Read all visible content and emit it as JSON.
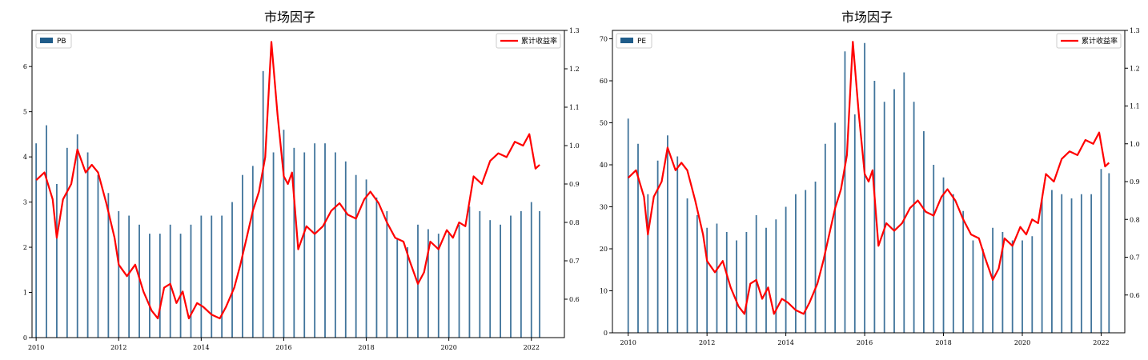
{
  "chart_data": [
    {
      "type": "bar+line",
      "title": "市场因子",
      "x_ticks": [
        "2010",
        "2012",
        "2014",
        "2016",
        "2018",
        "2020",
        "2022"
      ],
      "xlim": [
        2009.9,
        2022.8
      ],
      "ylim_left": [
        0,
        6.8
      ],
      "yticks_left": [
        "0",
        "1",
        "2",
        "3",
        "4",
        "5",
        "6"
      ],
      "ylim_right": [
        0.5,
        1.3
      ],
      "yticks_right": [
        "0.6",
        "0.7",
        "0.8",
        "0.9",
        "1.0",
        "1.1",
        "1.2",
        "1.3"
      ],
      "bar_series": {
        "name": "PB",
        "color": "#1f5c8a",
        "x": [
          2010.0,
          2010.25,
          2010.5,
          2010.75,
          2011.0,
          2011.25,
          2011.5,
          2011.75,
          2012.0,
          2012.25,
          2012.5,
          2012.75,
          2013.0,
          2013.25,
          2013.5,
          2013.75,
          2014.0,
          2014.25,
          2014.5,
          2014.75,
          2015.0,
          2015.25,
          2015.5,
          2015.75,
          2016.0,
          2016.25,
          2016.5,
          2016.75,
          2017.0,
          2017.25,
          2017.5,
          2017.75,
          2018.0,
          2018.25,
          2018.5,
          2018.75,
          2019.0,
          2019.25,
          2019.5,
          2019.75,
          2020.0,
          2020.25,
          2020.5,
          2020.75,
          2021.0,
          2021.25,
          2021.5,
          2021.75,
          2022.0,
          2022.2
        ],
        "values": [
          4.3,
          4.7,
          3.4,
          4.2,
          4.5,
          4.1,
          3.6,
          3.2,
          2.8,
          2.7,
          2.5,
          2.3,
          2.3,
          2.5,
          2.3,
          2.5,
          2.7,
          2.7,
          2.7,
          3.0,
          3.6,
          3.8,
          5.9,
          4.1,
          4.6,
          4.2,
          4.1,
          4.3,
          4.3,
          4.1,
          3.9,
          3.6,
          3.5,
          3.1,
          2.8,
          2.2,
          2.0,
          2.5,
          2.4,
          2.3,
          2.3,
          2.5,
          2.9,
          2.8,
          2.6,
          2.5,
          2.7,
          2.8,
          3.0,
          2.8
        ]
      },
      "line_series": {
        "name": "累计收益率",
        "color": "#ff0000",
        "x": [
          2010.0,
          2010.2,
          2010.4,
          2010.5,
          2010.65,
          2010.85,
          2011.0,
          2011.2,
          2011.35,
          2011.5,
          2011.7,
          2011.9,
          2012.0,
          2012.2,
          2012.4,
          2012.6,
          2012.8,
          2012.95,
          2013.1,
          2013.25,
          2013.4,
          2013.55,
          2013.7,
          2013.9,
          2014.05,
          2014.25,
          2014.45,
          2014.6,
          2014.8,
          2014.95,
          2015.1,
          2015.25,
          2015.4,
          2015.55,
          2015.7,
          2015.85,
          2016.0,
          2016.1,
          2016.2,
          2016.35,
          2016.55,
          2016.75,
          2016.95,
          2017.15,
          2017.35,
          2017.55,
          2017.75,
          2017.95,
          2018.1,
          2018.3,
          2018.5,
          2018.7,
          2018.9,
          2019.05,
          2019.25,
          2019.4,
          2019.55,
          2019.75,
          2019.95,
          2020.1,
          2020.25,
          2020.4,
          2020.6,
          2020.8,
          2021.0,
          2021.2,
          2021.4,
          2021.6,
          2021.8,
          2021.95,
          2022.1,
          2022.2
        ],
        "values": [
          0.91,
          0.93,
          0.86,
          0.76,
          0.86,
          0.9,
          0.99,
          0.93,
          0.95,
          0.93,
          0.85,
          0.76,
          0.69,
          0.66,
          0.69,
          0.62,
          0.57,
          0.55,
          0.63,
          0.64,
          0.59,
          0.62,
          0.55,
          0.59,
          0.58,
          0.56,
          0.55,
          0.58,
          0.63,
          0.69,
          0.76,
          0.83,
          0.88,
          0.97,
          1.27,
          1.08,
          0.92,
          0.9,
          0.93,
          0.73,
          0.79,
          0.77,
          0.79,
          0.83,
          0.85,
          0.82,
          0.81,
          0.86,
          0.88,
          0.85,
          0.8,
          0.76,
          0.75,
          0.7,
          0.64,
          0.67,
          0.75,
          0.73,
          0.78,
          0.76,
          0.8,
          0.79,
          0.92,
          0.9,
          0.96,
          0.98,
          0.97,
          1.01,
          1.0,
          1.03,
          0.94,
          0.95
        ]
      },
      "legend_left": "top-left",
      "legend_right": "top-right"
    },
    {
      "type": "bar+line",
      "title": "市场因子",
      "x_ticks": [
        "2010",
        "2012",
        "2014",
        "2016",
        "2018",
        "2020",
        "2022"
      ],
      "xlim": [
        2009.6,
        2022.6
      ],
      "ylim_left": [
        0,
        72
      ],
      "yticks_left": [
        "0",
        "10",
        "20",
        "30",
        "40",
        "50",
        "60",
        "70"
      ],
      "ylim_right": [
        0.5,
        1.3
      ],
      "yticks_right": [
        "0.6",
        "0.7",
        "0.8",
        "0.9",
        "1.0",
        "1.1",
        "1.2",
        "1.3"
      ],
      "bar_series": {
        "name": "PE",
        "color": "#1f5c8a",
        "x": [
          2010.0,
          2010.25,
          2010.5,
          2010.75,
          2011.0,
          2011.25,
          2011.5,
          2011.75,
          2012.0,
          2012.25,
          2012.5,
          2012.75,
          2013.0,
          2013.25,
          2013.5,
          2013.75,
          2014.0,
          2014.25,
          2014.5,
          2014.75,
          2015.0,
          2015.25,
          2015.5,
          2015.75,
          2016.0,
          2016.25,
          2016.5,
          2016.75,
          2017.0,
          2017.25,
          2017.5,
          2017.75,
          2018.0,
          2018.25,
          2018.5,
          2018.75,
          2019.0,
          2019.25,
          2019.5,
          2019.75,
          2020.0,
          2020.25,
          2020.5,
          2020.75,
          2021.0,
          2021.25,
          2021.5,
          2021.75,
          2022.0,
          2022.2
        ],
        "values": [
          51,
          45,
          33,
          41,
          47,
          42,
          32,
          28,
          25,
          26,
          24,
          22,
          24,
          28,
          25,
          27,
          30,
          33,
          34,
          36,
          45,
          50,
          67,
          52,
          69,
          60,
          55,
          58,
          62,
          55,
          48,
          40,
          37,
          33,
          29,
          22,
          20,
          25,
          24,
          22,
          22,
          23,
          32,
          34,
          33,
          32,
          33,
          33,
          39,
          38
        ]
      },
      "line_series": {
        "name": "累计收益率",
        "color": "#ff0000",
        "x": [
          2010.0,
          2010.2,
          2010.4,
          2010.5,
          2010.65,
          2010.85,
          2011.0,
          2011.2,
          2011.35,
          2011.5,
          2011.7,
          2011.9,
          2012.0,
          2012.2,
          2012.4,
          2012.6,
          2012.8,
          2012.95,
          2013.1,
          2013.25,
          2013.4,
          2013.55,
          2013.7,
          2013.9,
          2014.05,
          2014.25,
          2014.45,
          2014.6,
          2014.8,
          2014.95,
          2015.1,
          2015.25,
          2015.4,
          2015.55,
          2015.7,
          2015.85,
          2016.0,
          2016.1,
          2016.2,
          2016.35,
          2016.55,
          2016.75,
          2016.95,
          2017.15,
          2017.35,
          2017.55,
          2017.75,
          2017.95,
          2018.1,
          2018.3,
          2018.5,
          2018.7,
          2018.9,
          2019.05,
          2019.25,
          2019.4,
          2019.55,
          2019.75,
          2019.95,
          2020.1,
          2020.25,
          2020.4,
          2020.6,
          2020.8,
          2021.0,
          2021.2,
          2021.4,
          2021.6,
          2021.8,
          2021.95,
          2022.1,
          2022.2
        ],
        "values": [
          0.91,
          0.93,
          0.86,
          0.76,
          0.86,
          0.9,
          0.99,
          0.93,
          0.95,
          0.93,
          0.85,
          0.76,
          0.69,
          0.66,
          0.69,
          0.62,
          0.57,
          0.55,
          0.63,
          0.64,
          0.59,
          0.62,
          0.55,
          0.59,
          0.58,
          0.56,
          0.55,
          0.58,
          0.63,
          0.69,
          0.76,
          0.83,
          0.88,
          0.97,
          1.27,
          1.08,
          0.92,
          0.9,
          0.93,
          0.73,
          0.79,
          0.77,
          0.79,
          0.83,
          0.85,
          0.82,
          0.81,
          0.86,
          0.88,
          0.85,
          0.8,
          0.76,
          0.75,
          0.7,
          0.64,
          0.67,
          0.75,
          0.73,
          0.78,
          0.76,
          0.8,
          0.79,
          0.92,
          0.9,
          0.96,
          0.98,
          0.97,
          1.01,
          1.0,
          1.03,
          0.94,
          0.95
        ]
      },
      "legend_left": "top-left",
      "legend_right": "top-right"
    }
  ]
}
